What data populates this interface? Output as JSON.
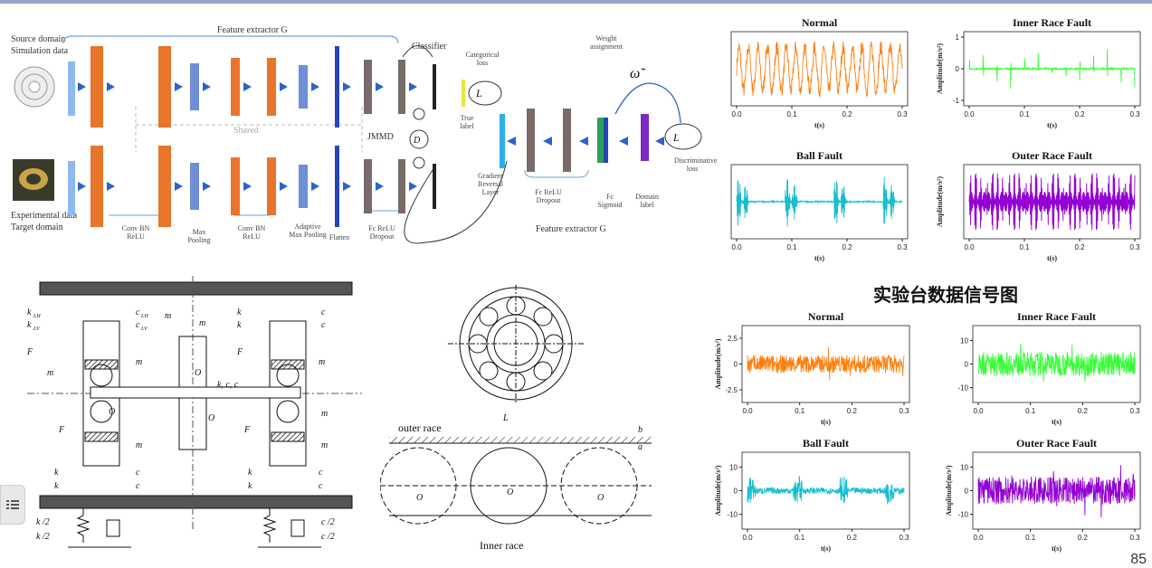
{
  "network": {
    "source_domain": "Source domain",
    "simulation_data": "Simulation data",
    "experimental_data": "Experimental data",
    "target_domain": "Target domain",
    "feature_extractor_top": "Feature extractor G",
    "feature_extractor_bottom": "Feature extractor G",
    "shared": "Shared",
    "classifier": "Classifier",
    "categorical_loss": "Categorical loss",
    "true_label": "True label",
    "jmmd": "JMMD",
    "weight_assignment": "Weight assignment",
    "gradient_reversal": "Gradient Reversal Layer",
    "fc_relu_dropout_2": "Fc ReLU Dropout",
    "fc_sigmoid": "Fc Sigmoid",
    "domain_label": "Domain label",
    "discriminative_loss": "Discriminative loss",
    "legend_conv": "Conv BN ReLU",
    "legend_max": "Max Pooling",
    "legend_conv2": "Conv BN ReLU",
    "legend_adaptive": "Adaptive Max Pooling",
    "legend_flatten": "Flatten",
    "legend_fc": "Fc ReLU Dropout",
    "colors": {
      "conv": "#e8752a",
      "pool": "#6f8fd6",
      "flat": "#2545b8",
      "fc": "#7a6a6a",
      "arrow": "#2d63c9",
      "disc": "#7a2bc4",
      "sig": "#2aa05a"
    }
  },
  "mechanics": {
    "labels": [
      "k_LH",
      "k_LV",
      "c_LH",
      "c_LV",
      "F_pL",
      "m_wL",
      "m_L",
      "F_dL",
      "m_r",
      "m_sL",
      "k_BLV",
      "k_BLH",
      "c_BLH",
      "c_BLV",
      "k_RH",
      "k_RV",
      "c_RH",
      "c_RV",
      "F_pR",
      "m_wR",
      "m_R",
      "F_dR",
      "m_sR",
      "k_BRV",
      "k_BRH",
      "c_BRH",
      "c_BRV",
      "k_cH/2",
      "k_cV/2",
      "c_cH/2",
      "c_cV/2",
      "O_1",
      "O_2",
      "O_3",
      "k, c, c_m"
    ],
    "bearing": {
      "outer_race": "outer race",
      "inner_race": "Inner race",
      "LD": "L",
      "b": "b",
      "a": "a",
      "O": "O"
    }
  },
  "sim_title": "实验台数据信号图",
  "page_number": "85",
  "chart_data": [
    {
      "type": "line",
      "title": "Normal",
      "xlabel": "t(s)",
      "ylabel": "",
      "xlim": [
        0,
        0.3
      ],
      "xticks": [
        0.0,
        0.1,
        0.2,
        0.3
      ],
      "yticks": [],
      "color": "#ff7f0e",
      "pattern": "normal",
      "amp": 0.9
    },
    {
      "type": "line",
      "title": "Inner Race Fault",
      "xlabel": "t(s)",
      "ylabel": "Amplitude(m/s²)",
      "xlim": [
        0,
        0.3
      ],
      "xticks": [
        0.0,
        0.1,
        0.2,
        0.3
      ],
      "ylim": [
        -1,
        1
      ],
      "yticks": [
        -1,
        0,
        1
      ],
      "color": "#33ff33",
      "pattern": "inner",
      "amp": 0.7
    },
    {
      "type": "line",
      "title": "Ball Fault",
      "xlabel": "t(s)",
      "ylabel": "",
      "xlim": [
        0,
        0.3
      ],
      "xticks": [
        0.0,
        0.1,
        0.2,
        0.3
      ],
      "yticks": [],
      "color": "#17becf",
      "pattern": "ball",
      "amp": 0.8
    },
    {
      "type": "line",
      "title": "Outer Race Fault",
      "xlabel": "t(s)",
      "ylabel": "Amplitude(m/s²)",
      "xlim": [
        0,
        0.3
      ],
      "xticks": [
        0.0,
        0.1,
        0.2,
        0.3
      ],
      "yticks": [],
      "color": "#9400d3",
      "pattern": "outer",
      "amp": 0.9
    },
    {
      "type": "line",
      "title": "Normal",
      "xlabel": "t(s)",
      "ylabel": "Amplitude(m/s²)",
      "xlim": [
        0,
        0.3
      ],
      "xticks": [
        0.0,
        0.1,
        0.2,
        0.3
      ],
      "ylim": [
        -3.2,
        3.2
      ],
      "yticks": [
        -2.5,
        0.0,
        2.5
      ],
      "color": "#ff7f0e",
      "pattern": "noise",
      "amp": 0.45
    },
    {
      "type": "line",
      "title": "Inner Race Fault",
      "xlabel": "t(s)",
      "ylabel": "",
      "xlim": [
        0,
        0.3
      ],
      "xticks": [
        0.0,
        0.1,
        0.2,
        0.3
      ],
      "ylim": [
        -14,
        14
      ],
      "yticks": [
        -10,
        0,
        10
      ],
      "color": "#33ff33",
      "pattern": "noise",
      "amp": 0.6
    },
    {
      "type": "line",
      "title": "Ball Fault",
      "xlabel": "t(s)",
      "ylabel": "Amplitude(m/s²)",
      "xlim": [
        0,
        0.3
      ],
      "xticks": [
        0.0,
        0.1,
        0.2,
        0.3
      ],
      "ylim": [
        -14,
        14
      ],
      "yticks": [
        -10,
        0,
        10
      ],
      "color": "#17becf",
      "pattern": "ballnoise",
      "amp": 0.55
    },
    {
      "type": "line",
      "title": "Outer Race Fault",
      "xlabel": "t(s)",
      "ylabel": "Amplitude(m/s²)",
      "xlim": [
        0,
        0.3
      ],
      "xticks": [
        0.0,
        0.1,
        0.2,
        0.3
      ],
      "ylim": [
        -14,
        14
      ],
      "yticks": [
        -10,
        0,
        10
      ],
      "color": "#9400d3",
      "pattern": "noise",
      "amp": 0.7
    }
  ]
}
